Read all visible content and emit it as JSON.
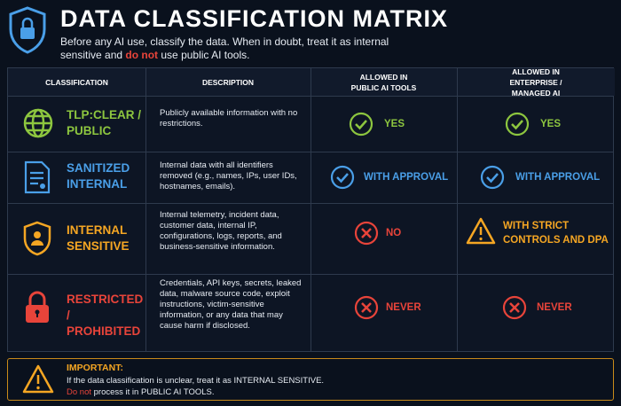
{
  "header": {
    "title": "DATA CLASSIFICATION MATRIX",
    "subtitle": [
      "Before any AI use, classify the data. When in doubt, treat it as internal sensitive and ",
      "do not",
      " use public AI tools."
    ]
  },
  "table": {
    "columns": [
      "CLASSIFICATION",
      "DESCRIPTION",
      "ALLOWED IN PUBLIC AI TOOLS",
      "ALLOWED IN ENTERPRISE / MANAGED AI"
    ],
    "rows": [
      [
        "TLP:CLEAR / PUBLIC",
        "Publicly available information with no restrictions.",
        "YES",
        "YES"
      ],
      [
        "SANITIZED INTERNAL",
        "Internal data with all identifiers removed (e.g., names, IPs, user IDs, hostnames, emails).",
        "WITH APPROVAL",
        "WITH APPROVAL"
      ],
      [
        "INTERNAL SENSITIVE",
        "Internal telemetry, incident data, customer data, internal IP, configurations, logs, reports, and business-sensitive information.",
        "NO",
        "WITH STRICT CONTROLS AND DPA"
      ],
      [
        "RESTRICTED / PROHIBITED",
        "Credentials, API keys, secrets, leaked data, malware source code, exploit instructions, victim-sensitive information, or any data that may cause harm if disclosed.",
        "NEVER",
        "NEVER"
      ]
    ]
  },
  "footer": {
    "title": "IMPORTANT:",
    "line1": "If the data classification is unclear, treat it as INTERNAL SENSITIVE.",
    "line2": [
      "Do not",
      " process it in PUBLIC AI TOOLS."
    ]
  }
}
